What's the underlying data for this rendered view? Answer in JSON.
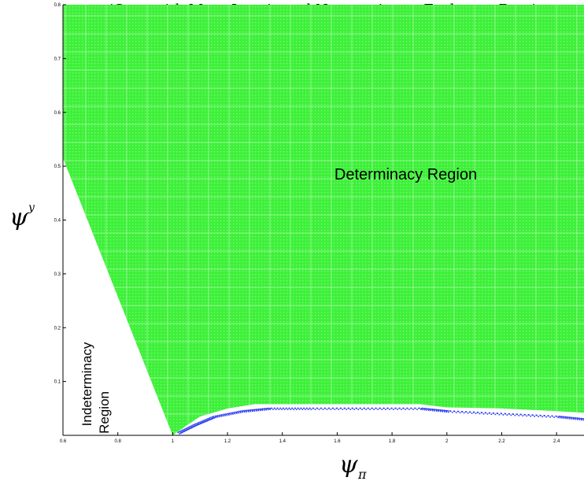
{
  "chart_data": {
    "type": "scatter",
    "title": "(Case with More Inertia and No reaction to Exchange Rate)",
    "xlabel_symbol": "ψ",
    "xlabel_subscript": "π",
    "ylabel_symbol": "ψ",
    "ylabel_subscript": "y",
    "xlim": [
      0.6,
      2.5
    ],
    "ylim": [
      0.0,
      0.8
    ],
    "x_ticks": [
      0.6,
      0.8,
      1.0,
      1.2,
      1.4,
      1.6,
      1.8,
      2.0,
      2.2,
      2.4
    ],
    "x_tick_labels": [
      "0.6",
      "0.8",
      "1",
      "1.2",
      "1.4",
      "1.6",
      "1.8",
      "2",
      "2.2",
      "2.4"
    ],
    "y_ticks": [
      0.1,
      0.2,
      0.3,
      0.4,
      0.5,
      0.6,
      0.7,
      0.8
    ],
    "y_tick_labels": [
      "0.1",
      "0.2",
      "0.3",
      "0.4",
      "0.5",
      "0.6",
      "0.7",
      "0.8"
    ],
    "grid": false,
    "regions": [
      {
        "name": "Determinacy Region",
        "color": "#3ef03a",
        "boundary": [
          [
            0.6,
            0.515
          ],
          [
            1.0,
            0.0
          ],
          [
            1.05,
            0.018
          ],
          [
            1.1,
            0.035
          ],
          [
            1.2,
            0.05
          ],
          [
            1.3,
            0.058
          ],
          [
            1.6,
            0.058
          ],
          [
            1.9,
            0.058
          ],
          [
            2.0,
            0.052
          ],
          [
            2.2,
            0.05
          ],
          [
            2.4,
            0.045
          ],
          [
            2.5,
            0.042
          ]
        ]
      },
      {
        "name": "Boundary band",
        "color": "#2b3df0",
        "band_points": [
          [
            1.02,
            0.005
          ],
          [
            1.08,
            0.02
          ],
          [
            1.15,
            0.035
          ],
          [
            1.25,
            0.045
          ],
          [
            1.35,
            0.05
          ],
          [
            1.5,
            0.05
          ],
          [
            1.7,
            0.05
          ],
          [
            1.9,
            0.05
          ],
          [
            2.0,
            0.045
          ],
          [
            2.2,
            0.04
          ],
          [
            2.4,
            0.035
          ],
          [
            2.5,
            0.03
          ]
        ]
      }
    ],
    "annotations": [
      {
        "text": "Determinacy Region",
        "x": 1.85,
        "y": 0.475
      },
      {
        "text_line1": "Indeterminacy",
        "text_line2": "Region",
        "x": 0.72,
        "y": 0.12,
        "rotation": -90
      }
    ]
  }
}
